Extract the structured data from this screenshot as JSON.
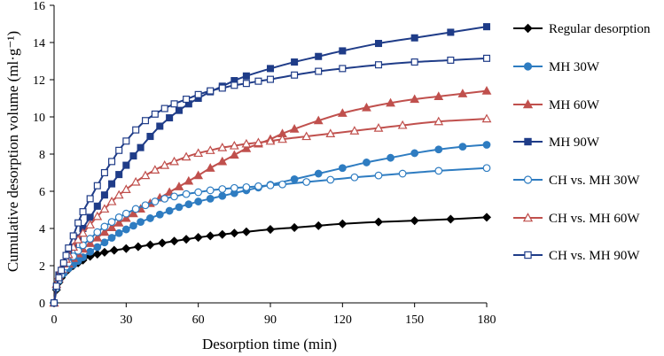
{
  "chart_data": {
    "type": "line",
    "title": "",
    "xlabel": "Desorption time (min)",
    "ylabel": "Cumulative desorption volume (ml·g⁻¹)",
    "xlim": [
      0,
      180
    ],
    "ylim": [
      0,
      16
    ],
    "x_ticks": [
      "0",
      "30",
      "60",
      "90",
      "120",
      "150",
      "180"
    ],
    "y_ticks": [
      "0",
      "2",
      "4",
      "6",
      "8",
      "10",
      "12",
      "14",
      "16"
    ],
    "grid": false,
    "legend_position": "right",
    "series": [
      {
        "name": "Regular desorption",
        "color": "#000000",
        "marker": "diamond",
        "filled": true,
        "x": [
          0,
          1,
          2,
          3,
          4,
          5,
          6,
          8,
          10,
          12,
          15,
          18,
          21,
          25,
          30,
          35,
          40,
          45,
          50,
          55,
          60,
          65,
          70,
          75,
          80,
          90,
          100,
          110,
          120,
          135,
          150,
          165,
          180
        ],
        "y": [
          0,
          0.7,
          1.1,
          1.35,
          1.55,
          1.7,
          1.8,
          2.0,
          2.15,
          2.3,
          2.5,
          2.62,
          2.72,
          2.83,
          2.92,
          3.02,
          3.12,
          3.22,
          3.32,
          3.42,
          3.52,
          3.6,
          3.68,
          3.75,
          3.82,
          3.95,
          4.05,
          4.15,
          4.25,
          4.35,
          4.42,
          4.5,
          4.6
        ]
      },
      {
        "name": "MH 30W",
        "color": "#2e7cc1",
        "marker": "circle",
        "filled": true,
        "x": [
          0,
          2,
          4,
          6,
          8,
          10,
          12,
          15,
          18,
          21,
          24,
          27,
          30,
          33,
          36,
          40,
          44,
          48,
          52,
          56,
          60,
          65,
          70,
          75,
          80,
          85,
          90,
          100,
          110,
          120,
          130,
          140,
          150,
          160,
          170,
          180
        ],
        "y": [
          0,
          1.2,
          1.6,
          1.85,
          2.05,
          2.25,
          2.45,
          2.75,
          3.0,
          3.25,
          3.5,
          3.75,
          3.95,
          4.15,
          4.35,
          4.55,
          4.75,
          4.95,
          5.15,
          5.3,
          5.45,
          5.6,
          5.75,
          5.9,
          6.05,
          6.2,
          6.35,
          6.65,
          6.95,
          7.25,
          7.55,
          7.8,
          8.05,
          8.25,
          8.4,
          8.5
        ]
      },
      {
        "name": "MH 60W",
        "color": "#c0504d",
        "marker": "triangle",
        "filled": true,
        "x": [
          0,
          2,
          4,
          6,
          8,
          10,
          12,
          15,
          18,
          21,
          24,
          27,
          30,
          33,
          36,
          40,
          44,
          48,
          52,
          56,
          60,
          65,
          70,
          75,
          80,
          85,
          90,
          95,
          100,
          110,
          120,
          130,
          140,
          150,
          160,
          170,
          180
        ],
        "y": [
          0,
          1.3,
          1.8,
          2.1,
          2.4,
          2.65,
          2.9,
          3.2,
          3.5,
          3.8,
          4.05,
          4.3,
          4.55,
          4.8,
          5.05,
          5.35,
          5.65,
          5.95,
          6.25,
          6.55,
          6.85,
          7.25,
          7.6,
          7.95,
          8.3,
          8.55,
          8.8,
          9.1,
          9.35,
          9.8,
          10.2,
          10.5,
          10.75,
          10.95,
          11.1,
          11.25,
          11.4
        ]
      },
      {
        "name": "MH 90W",
        "color": "#1f3c88",
        "marker": "square",
        "filled": true,
        "x": [
          0,
          2,
          4,
          6,
          8,
          10,
          12,
          15,
          18,
          21,
          24,
          27,
          30,
          33,
          36,
          40,
          44,
          48,
          52,
          56,
          60,
          65,
          70,
          75,
          80,
          90,
          100,
          110,
          120,
          135,
          150,
          165,
          180
        ],
        "y": [
          0,
          1.5,
          2.1,
          2.6,
          3.0,
          3.5,
          4.0,
          4.6,
          5.2,
          5.8,
          6.4,
          6.9,
          7.4,
          7.9,
          8.35,
          8.95,
          9.5,
          9.95,
          10.35,
          10.7,
          11.0,
          11.35,
          11.65,
          11.95,
          12.2,
          12.6,
          12.95,
          13.25,
          13.55,
          13.95,
          14.25,
          14.55,
          14.85
        ]
      },
      {
        "name": "CH vs. MH 30W",
        "color": "#2e7cc1",
        "marker": "circle",
        "filled": false,
        "x": [
          0,
          1,
          2,
          3,
          4,
          5,
          6,
          8,
          10,
          12,
          15,
          18,
          21,
          24,
          27,
          30,
          34,
          38,
          42,
          46,
          50,
          55,
          60,
          65,
          70,
          75,
          80,
          85,
          90,
          95,
          105,
          115,
          125,
          135,
          145,
          160,
          180
        ],
        "y": [
          0,
          0.8,
          1.2,
          1.5,
          1.75,
          1.95,
          2.15,
          2.5,
          2.8,
          3.1,
          3.45,
          3.8,
          4.1,
          4.35,
          4.6,
          4.8,
          5.05,
          5.25,
          5.45,
          5.6,
          5.72,
          5.85,
          5.95,
          6.05,
          6.12,
          6.18,
          6.22,
          6.27,
          6.32,
          6.37,
          6.5,
          6.62,
          6.75,
          6.85,
          6.95,
          7.1,
          7.25
        ]
      },
      {
        "name": "CH vs. MH 60W",
        "color": "#c0504d",
        "marker": "triangle",
        "filled": false,
        "x": [
          0,
          1,
          2,
          3,
          4,
          5,
          6,
          8,
          10,
          12,
          15,
          18,
          21,
          24,
          27,
          30,
          34,
          38,
          42,
          46,
          50,
          55,
          60,
          65,
          70,
          75,
          80,
          85,
          90,
          95,
          105,
          115,
          125,
          135,
          145,
          160,
          180
        ],
        "y": [
          0,
          1.0,
          1.45,
          1.8,
          2.1,
          2.35,
          2.6,
          3.0,
          3.4,
          3.75,
          4.2,
          4.65,
          5.05,
          5.45,
          5.8,
          6.1,
          6.5,
          6.85,
          7.15,
          7.4,
          7.6,
          7.85,
          8.05,
          8.2,
          8.35,
          8.45,
          8.55,
          8.62,
          8.7,
          8.8,
          8.95,
          9.1,
          9.25,
          9.4,
          9.55,
          9.75,
          9.9
        ]
      },
      {
        "name": "CH vs. MH 90W",
        "color": "#1f3c88",
        "marker": "square",
        "filled": false,
        "x": [
          0,
          1,
          2,
          3,
          4,
          5,
          6,
          8,
          10,
          12,
          15,
          18,
          21,
          24,
          27,
          30,
          34,
          38,
          42,
          46,
          50,
          55,
          60,
          65,
          70,
          75,
          80,
          85,
          90,
          100,
          110,
          120,
          135,
          150,
          165,
          180
        ],
        "y": [
          0,
          0.9,
          1.35,
          1.75,
          2.15,
          2.55,
          2.95,
          3.6,
          4.3,
          4.9,
          5.6,
          6.3,
          7.0,
          7.6,
          8.2,
          8.7,
          9.3,
          9.8,
          10.15,
          10.45,
          10.7,
          10.95,
          11.2,
          11.4,
          11.55,
          11.7,
          11.8,
          11.92,
          12.02,
          12.25,
          12.45,
          12.6,
          12.8,
          12.95,
          13.05,
          13.15
        ]
      }
    ]
  }
}
